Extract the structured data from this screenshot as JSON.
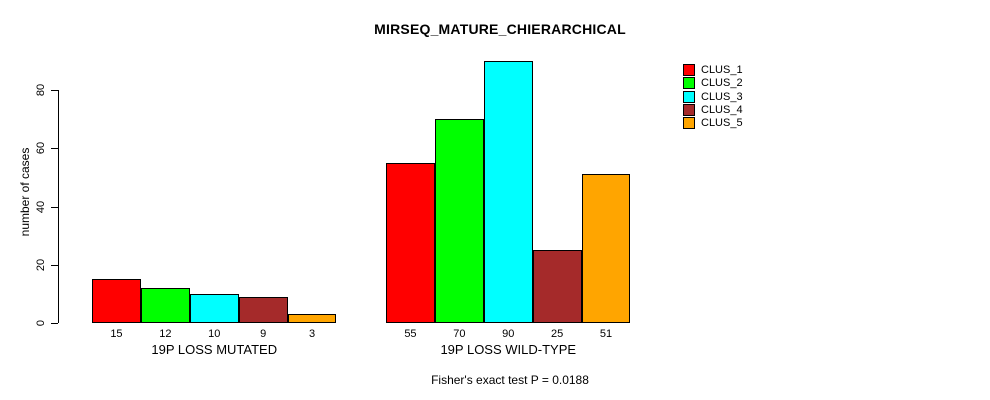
{
  "chart_data": {
    "type": "bar",
    "title": "MIRSEQ_MATURE_CHIERARCHICAL",
    "xlabel": "",
    "ylabel": "number of cases",
    "annotation": "Fisher's exact test P = 0.0188",
    "categories": [
      "19P LOSS MUTATED",
      "19P LOSS WILD-TYPE"
    ],
    "series": [
      {
        "name": "CLUS_1",
        "color": "#FF0000",
        "values": [
          15,
          55
        ]
      },
      {
        "name": "CLUS_2",
        "color": "#00FF00",
        "values": [
          12,
          70
        ]
      },
      {
        "name": "CLUS_3",
        "color": "#00FFFF",
        "values": [
          10,
          90
        ]
      },
      {
        "name": "CLUS_4",
        "color": "#A52A2A",
        "values": [
          9,
          25
        ]
      },
      {
        "name": "CLUS_5",
        "color": "#FFA500",
        "values": [
          3,
          51
        ]
      }
    ],
    "bar_value_labels_shown": true,
    "yticks": [
      0,
      20,
      40,
      60,
      80
    ],
    "ylim": [
      0,
      90
    ],
    "grid": false,
    "legend_position": "top-right-outside",
    "axis_color": "#000000",
    "background_color": "#FFFFFF"
  }
}
